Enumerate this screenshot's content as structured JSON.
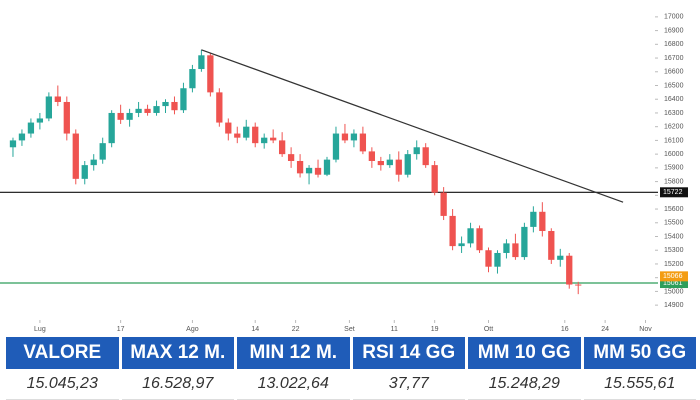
{
  "chart_data": {
    "type": "candlestick",
    "up_color": "#26a69a",
    "down_color": "#ef5350",
    "xlim": [
      -1,
      71
    ],
    "ylim": [
      14850,
      17050
    ],
    "yticks": [
      14900,
      15000,
      15100,
      15200,
      15300,
      15400,
      15500,
      15600,
      15700,
      15800,
      15900,
      16000,
      16100,
      16200,
      16300,
      16400,
      16500,
      16600,
      16700,
      16800,
      16900,
      17000
    ],
    "xticks": [
      {
        "value": 3,
        "label": "Lug"
      },
      {
        "value": 12,
        "label": "17"
      },
      {
        "value": 20,
        "label": "Ago"
      },
      {
        "value": 27,
        "label": "14"
      },
      {
        "value": 31.5,
        "label": "22"
      },
      {
        "value": 37.5,
        "label": "Set"
      },
      {
        "value": 42.5,
        "label": "11"
      },
      {
        "value": 47,
        "label": "19"
      },
      {
        "value": 53,
        "label": "Ott"
      },
      {
        "value": 61.5,
        "label": "16"
      },
      {
        "value": 66,
        "label": "24"
      },
      {
        "value": 70.5,
        "label": "Nov"
      }
    ],
    "ohlc": [
      [
        16050,
        16120,
        15980,
        16100
      ],
      [
        16100,
        16180,
        16060,
        16150
      ],
      [
        16150,
        16260,
        16120,
        16230
      ],
      [
        16230,
        16300,
        16180,
        16260
      ],
      [
        16260,
        16450,
        16240,
        16420
      ],
      [
        16420,
        16500,
        16350,
        16380
      ],
      [
        16380,
        16420,
        16100,
        16150
      ],
      [
        16150,
        16180,
        15780,
        15820
      ],
      [
        15820,
        15950,
        15780,
        15920
      ],
      [
        15920,
        16000,
        15880,
        15960
      ],
      [
        15960,
        16120,
        15930,
        16080
      ],
      [
        16080,
        16320,
        16050,
        16300
      ],
      [
        16300,
        16360,
        16220,
        16250
      ],
      [
        16250,
        16330,
        16200,
        16300
      ],
      [
        16300,
        16380,
        16270,
        16330
      ],
      [
        16330,
        16360,
        16280,
        16300
      ],
      [
        16300,
        16390,
        16280,
        16350
      ],
      [
        16350,
        16400,
        16300,
        16380
      ],
      [
        16380,
        16420,
        16290,
        16320
      ],
      [
        16320,
        16520,
        16300,
        16480
      ],
      [
        16480,
        16650,
        16450,
        16620
      ],
      [
        16620,
        16760,
        16600,
        16720
      ],
      [
        16720,
        16740,
        16420,
        16450
      ],
      [
        16450,
        16480,
        16200,
        16230
      ],
      [
        16230,
        16260,
        16100,
        16150
      ],
      [
        16150,
        16200,
        16080,
        16120
      ],
      [
        16120,
        16250,
        16100,
        16200
      ],
      [
        16200,
        16230,
        16050,
        16080
      ],
      [
        16080,
        16150,
        16040,
        16120
      ],
      [
        16120,
        16180,
        16080,
        16100
      ],
      [
        16100,
        16160,
        15980,
        16000
      ],
      [
        16000,
        16050,
        15900,
        15950
      ],
      [
        15950,
        16000,
        15830,
        15860
      ],
      [
        15860,
        15920,
        15780,
        15900
      ],
      [
        15900,
        15960,
        15830,
        15850
      ],
      [
        15850,
        15980,
        15840,
        15960
      ],
      [
        15960,
        16200,
        15940,
        16150
      ],
      [
        16150,
        16220,
        16080,
        16100
      ],
      [
        16100,
        16180,
        16050,
        16150
      ],
      [
        16150,
        16200,
        16000,
        16020
      ],
      [
        16020,
        16050,
        15900,
        15950
      ],
      [
        15950,
        15980,
        15880,
        15920
      ],
      [
        15920,
        16000,
        15900,
        15960
      ],
      [
        15960,
        16020,
        15800,
        15850
      ],
      [
        15850,
        16030,
        15830,
        16000
      ],
      [
        16000,
        16100,
        15960,
        16050
      ],
      [
        16050,
        16080,
        15900,
        15920
      ],
      [
        15920,
        15950,
        15700,
        15720
      ],
      [
        15720,
        15760,
        15520,
        15550
      ],
      [
        15550,
        15600,
        15300,
        15330
      ],
      [
        15330,
        15400,
        15280,
        15350
      ],
      [
        15350,
        15500,
        15320,
        15460
      ],
      [
        15460,
        15480,
        15280,
        15300
      ],
      [
        15300,
        15320,
        15140,
        15180
      ],
      [
        15180,
        15300,
        15130,
        15280
      ],
      [
        15280,
        15380,
        15240,
        15350
      ],
      [
        15350,
        15420,
        15230,
        15250
      ],
      [
        15250,
        15500,
        15230,
        15470
      ],
      [
        15470,
        15620,
        15430,
        15580
      ],
      [
        15580,
        15650,
        15400,
        15440
      ],
      [
        15440,
        15460,
        15200,
        15230
      ],
      [
        15230,
        15310,
        15180,
        15260
      ],
      [
        15260,
        15280,
        15020,
        15050
      ],
      [
        15050,
        15070,
        14980,
        15045.23
      ]
    ],
    "trendline": {
      "x": [
        21,
        68
      ],
      "y": [
        16760,
        15650
      ]
    },
    "hlines": [
      {
        "value": 15722,
        "label": "15722",
        "color": "#111111"
      },
      {
        "value": 15061,
        "label": "15061",
        "color": "#2e9e5b"
      }
    ],
    "price_tags": [
      {
        "value": 15066,
        "label": "15066",
        "color": "#f39c12"
      }
    ]
  },
  "table": {
    "headers": [
      "VALORE",
      "MAX 12 M.",
      "MIN 12 M.",
      "RSI 14 GG",
      "MM 10 GG",
      "MM 50 GG"
    ],
    "values": [
      "15.045,23",
      "16.528,97",
      "13.022,64",
      "37,77",
      "15.248,29",
      "15.555,61"
    ]
  }
}
